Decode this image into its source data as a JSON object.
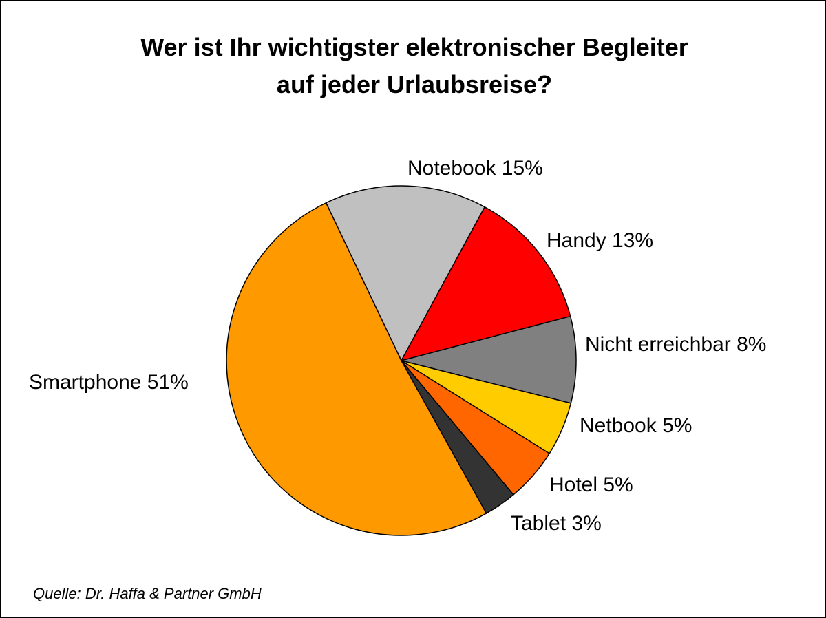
{
  "chart_data": {
    "type": "pie",
    "title": "Wer ist Ihr wichtigster elektronischer Begleiter auf jeder Urlaubsreise?",
    "title_lines": [
      "Wer ist Ihr wichtigster elektronischer Begleiter",
      "auf jeder Urlaubsreise?"
    ],
    "unit": "%",
    "start_direction": "starts at the Smartphone/Notebook boundary, clockwise",
    "slices": [
      {
        "name": "Notebook",
        "value": 15,
        "label": "Notebook 15%",
        "color": "#c0c0c0"
      },
      {
        "name": "Handy",
        "value": 13,
        "label": "Handy 13%",
        "color": "#ff0000"
      },
      {
        "name": "Nicht erreichbar",
        "value": 8,
        "label": "Nicht erreichbar 8%",
        "color": "#808080"
      },
      {
        "name": "Netbook",
        "value": 5,
        "label": "Netbook 5%",
        "color": "#ffcc00"
      },
      {
        "name": "Hotel",
        "value": 5,
        "label": "Hotel 5%",
        "color": "#ff6600"
      },
      {
        "name": "Tablet",
        "value": 3,
        "label": "Tablet 3%",
        "color": "#333333"
      },
      {
        "name": "Smartphone",
        "value": 51,
        "label": "Smartphone 51%",
        "color": "#ff9900"
      }
    ],
    "source": "Quelle: Dr. Haffa & Partner GmbH"
  }
}
